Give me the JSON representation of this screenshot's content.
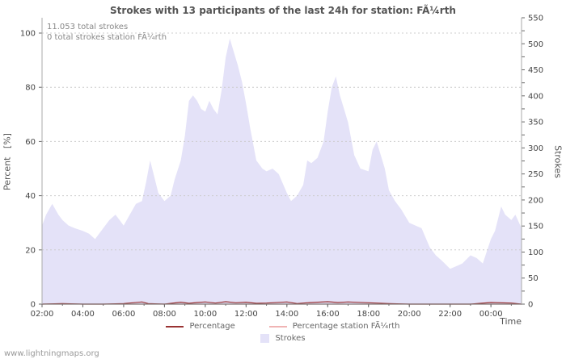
{
  "title": "Strokes with 13 participants of the last 24h for station: FÃ¼rth",
  "annotations": {
    "total_strokes": "11.053 total strokes",
    "station_total": "0 total strokes station FÃ¼rth"
  },
  "axes": {
    "left_label": "Percent   [%]",
    "right_label": "Strokes",
    "x_label": "Time"
  },
  "legend": [
    {
      "label": "Percentage",
      "type": "line",
      "color": "#993333"
    },
    {
      "label": "Percentage station FÃ¼rth",
      "type": "line",
      "color": "#f0b4b4"
    },
    {
      "label": "Strokes",
      "type": "area",
      "color": "#e4e2f8"
    }
  ],
  "watermark": "www.lightningmaps.org",
  "colors": {
    "grid": "#cccccc",
    "axis": "#666666",
    "area_fill": "#e4e2f8",
    "percentage_line": "#993333",
    "station_line": "#f0b4b4"
  },
  "chart_data": {
    "type": "area",
    "title": "Strokes with 13 participants of the last 24h for station: FÃ¼rth",
    "xlabel": "Time",
    "x_domain": [
      2,
      25.5
    ],
    "x_ticks": [
      {
        "h": 2,
        "label": "02:00"
      },
      {
        "h": 4,
        "label": "04:00"
      },
      {
        "h": 6,
        "label": "06:00"
      },
      {
        "h": 8,
        "label": "08:00"
      },
      {
        "h": 10,
        "label": "10:00"
      },
      {
        "h": 12,
        "label": "12:00"
      },
      {
        "h": 14,
        "label": "14:00"
      },
      {
        "h": 16,
        "label": "16:00"
      },
      {
        "h": 18,
        "label": "18:00"
      },
      {
        "h": 20,
        "label": "20:00"
      },
      {
        "h": 22,
        "label": "22:00"
      },
      {
        "h": 24,
        "label": "00:00"
      }
    ],
    "left_axis": {
      "label": "Percent [%]",
      "range": [
        0,
        100
      ],
      "ticks": [
        0,
        20,
        40,
        60,
        80,
        100
      ]
    },
    "right_axis": {
      "label": "Strokes",
      "range": [
        0,
        550
      ],
      "tick_step": 25,
      "label_step": 50
    },
    "grid": true,
    "legend_position": "bottom",
    "series": [
      {
        "name": "Strokes",
        "type": "area",
        "color": "#e4e2f8",
        "units": "percent-of-left-axis",
        "points": [
          [
            2.0,
            29
          ],
          [
            2.2,
            33
          ],
          [
            2.5,
            37
          ],
          [
            2.8,
            33
          ],
          [
            3.0,
            31
          ],
          [
            3.3,
            29
          ],
          [
            3.6,
            28
          ],
          [
            4.0,
            27
          ],
          [
            4.3,
            26
          ],
          [
            4.6,
            24
          ],
          [
            5.0,
            28
          ],
          [
            5.3,
            31
          ],
          [
            5.6,
            33
          ],
          [
            5.8,
            31
          ],
          [
            6.0,
            29
          ],
          [
            6.3,
            33
          ],
          [
            6.6,
            37
          ],
          [
            6.9,
            38
          ],
          [
            7.1,
            45
          ],
          [
            7.3,
            53
          ],
          [
            7.5,
            47
          ],
          [
            7.7,
            41
          ],
          [
            8.0,
            38
          ],
          [
            8.3,
            40
          ],
          [
            8.5,
            46
          ],
          [
            8.8,
            53
          ],
          [
            9.0,
            62
          ],
          [
            9.2,
            75
          ],
          [
            9.4,
            77
          ],
          [
            9.6,
            75
          ],
          [
            9.8,
            72
          ],
          [
            10.0,
            71
          ],
          [
            10.2,
            75
          ],
          [
            10.4,
            72
          ],
          [
            10.6,
            70
          ],
          [
            10.8,
            79
          ],
          [
            11.0,
            91
          ],
          [
            11.2,
            98
          ],
          [
            11.4,
            93
          ],
          [
            11.6,
            88
          ],
          [
            11.8,
            82
          ],
          [
            12.0,
            74
          ],
          [
            12.2,
            65
          ],
          [
            12.5,
            53
          ],
          [
            12.8,
            50
          ],
          [
            13.0,
            49
          ],
          [
            13.3,
            50
          ],
          [
            13.6,
            48
          ],
          [
            14.0,
            41
          ],
          [
            14.2,
            38
          ],
          [
            14.5,
            40
          ],
          [
            14.8,
            44
          ],
          [
            15.0,
            53
          ],
          [
            15.2,
            52
          ],
          [
            15.5,
            54
          ],
          [
            15.8,
            60
          ],
          [
            16.0,
            71
          ],
          [
            16.2,
            80
          ],
          [
            16.4,
            84
          ],
          [
            16.6,
            77
          ],
          [
            16.8,
            72
          ],
          [
            17.0,
            67
          ],
          [
            17.3,
            55
          ],
          [
            17.6,
            50
          ],
          [
            18.0,
            49
          ],
          [
            18.2,
            57
          ],
          [
            18.4,
            60
          ],
          [
            18.6,
            55
          ],
          [
            18.8,
            50
          ],
          [
            19.0,
            42
          ],
          [
            19.3,
            38
          ],
          [
            19.6,
            35
          ],
          [
            20.0,
            30
          ],
          [
            20.3,
            29
          ],
          [
            20.6,
            28
          ],
          [
            21.0,
            21
          ],
          [
            21.3,
            18
          ],
          [
            21.6,
            16
          ],
          [
            22.0,
            13
          ],
          [
            22.3,
            14
          ],
          [
            22.6,
            15
          ],
          [
            23.0,
            18
          ],
          [
            23.3,
            17
          ],
          [
            23.6,
            15
          ],
          [
            24.0,
            24
          ],
          [
            24.2,
            27
          ],
          [
            24.5,
            36
          ],
          [
            24.7,
            33
          ],
          [
            25.0,
            31
          ],
          [
            25.2,
            33
          ],
          [
            25.5,
            28
          ]
        ]
      },
      {
        "name": "Percentage",
        "type": "line",
        "color": "#993333",
        "units": "percent-of-left-axis",
        "points": [
          [
            2.0,
            0
          ],
          [
            3.0,
            0.2
          ],
          [
            4.0,
            0
          ],
          [
            5.0,
            0
          ],
          [
            6.0,
            0.2
          ],
          [
            6.9,
            0.8
          ],
          [
            7.2,
            0.2
          ],
          [
            8.0,
            0
          ],
          [
            8.8,
            0.7
          ],
          [
            9.2,
            0.3
          ],
          [
            9.6,
            0.6
          ],
          [
            10.0,
            0.8
          ],
          [
            10.5,
            0.4
          ],
          [
            11.0,
            0.9
          ],
          [
            11.5,
            0.5
          ],
          [
            12.0,
            0.7
          ],
          [
            12.5,
            0.3
          ],
          [
            13.0,
            0.4
          ],
          [
            14.0,
            0.8
          ],
          [
            14.5,
            0.2
          ],
          [
            15.0,
            0.5
          ],
          [
            16.0,
            0.9
          ],
          [
            16.5,
            0.6
          ],
          [
            17.0,
            0.8
          ],
          [
            18.0,
            0.5
          ],
          [
            19.0,
            0.2
          ],
          [
            20.0,
            0
          ],
          [
            21.0,
            0
          ],
          [
            22.0,
            0
          ],
          [
            23.0,
            0
          ],
          [
            24.0,
            0.6
          ],
          [
            25.0,
            0.4
          ],
          [
            25.5,
            0
          ]
        ]
      },
      {
        "name": "Percentage station FÃ¼rth",
        "type": "line",
        "color": "#f0b4b4",
        "units": "percent-of-left-axis",
        "points": [
          [
            2.0,
            0
          ],
          [
            25.5,
            0
          ]
        ]
      }
    ]
  }
}
